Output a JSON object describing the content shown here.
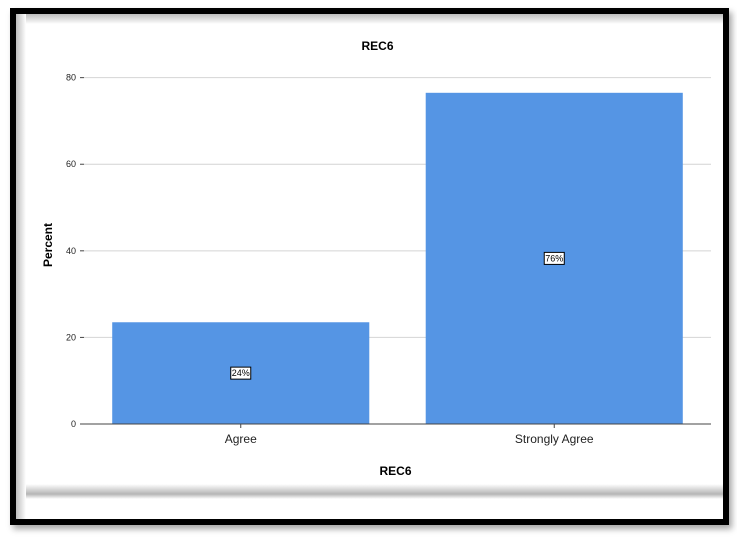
{
  "chart_data": {
    "type": "bar",
    "title": "REC6",
    "xlabel": "REC6",
    "ylabel": "Percent",
    "categories": [
      "Agree",
      "Strongly Agree"
    ],
    "values": [
      23.5,
      76.5
    ],
    "data_labels": [
      "24%",
      "76%"
    ],
    "ylim": [
      0,
      85
    ],
    "yticks": [
      "0",
      "20",
      "40",
      "60",
      "80"
    ],
    "grid": true,
    "bar_color": "#5595e4"
  }
}
